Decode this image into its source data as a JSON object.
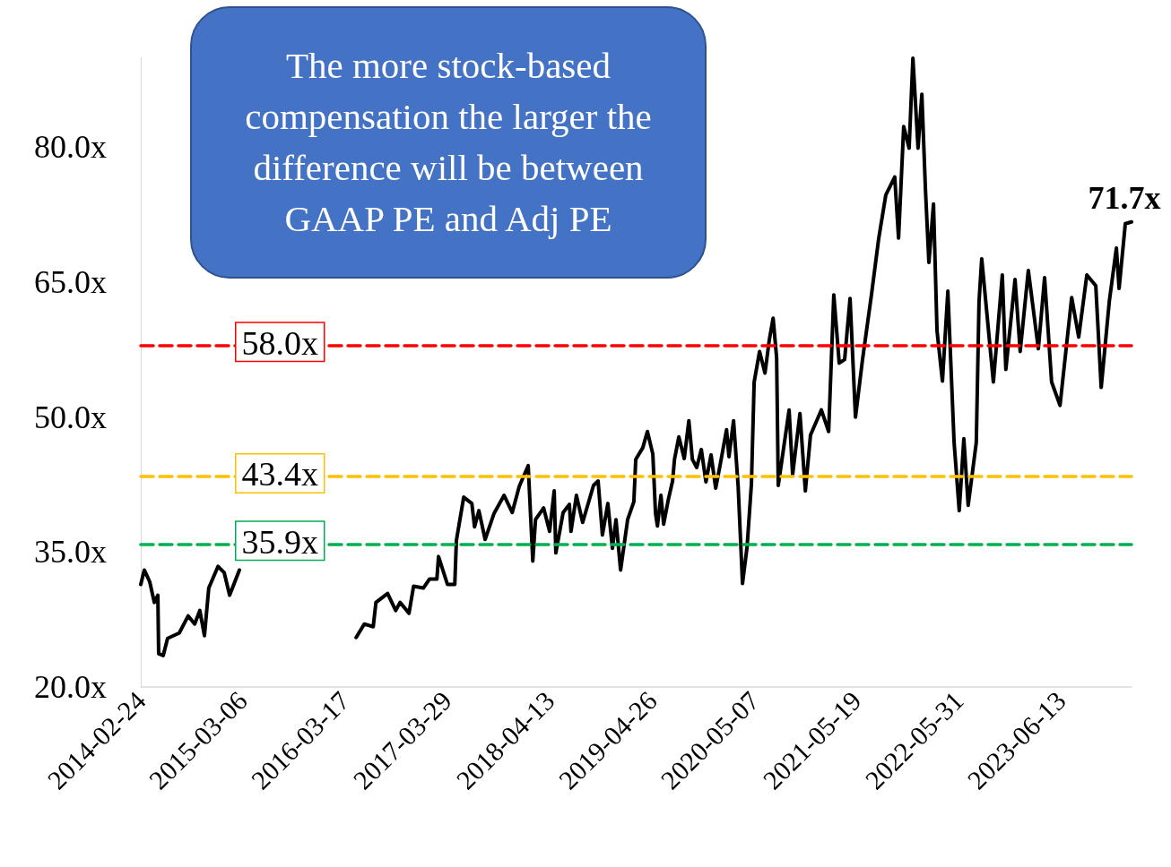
{
  "chart_data": {
    "type": "line",
    "annotations": [
      "The more stock-based compensation the larger the difference will be between GAAP PE and Adj PE"
    ],
    "x": [
      "2014-02-24",
      "2014-03-09",
      "2014-03-29",
      "2014-04-15",
      "2014-04-28",
      "2014-05-01",
      "2014-05-18",
      "2014-06-03",
      "2014-07-16",
      "2014-08-18",
      "2014-09-11",
      "2014-09-30",
      "2014-10-17",
      "2014-11-02",
      "2014-12-06",
      "2014-12-29",
      "2015-01-18",
      "2015-02-23",
      "2015-09-01",
      "2016-04-29",
      "2016-05-29",
      "2016-07-01",
      "2016-07-11",
      "2016-08-23",
      "2016-09-22",
      "2016-10-08",
      "2016-11-10",
      "2016-11-27",
      "2017-01-02",
      "2017-01-25",
      "2017-02-21",
      "2017-02-27",
      "2017-04-01",
      "2017-04-28",
      "2017-05-04",
      "2017-05-31",
      "2017-06-30",
      "2017-07-10",
      "2017-07-26",
      "2017-08-18",
      "2017-09-20",
      "2017-10-27",
      "2017-11-26",
      "2017-12-22",
      "2018-01-24",
      "2018-02-10",
      "2018-02-20",
      "2018-03-22",
      "2018-04-13",
      "2018-04-30",
      "2018-05-06",
      "2018-06-02",
      "2018-06-25",
      "2018-07-01",
      "2018-07-21",
      "2018-08-13",
      "2018-09-22",
      "2018-10-09",
      "2018-10-25",
      "2018-11-14",
      "2018-12-01",
      "2018-12-14",
      "2018-12-31",
      "2019-01-26",
      "2019-02-18",
      "2019-02-25",
      "2019-03-23",
      "2019-04-09",
      "2019-04-29",
      "2019-05-09",
      "2019-05-16",
      "2019-05-29",
      "2019-06-08",
      "2019-06-25",
      "2019-07-11",
      "2019-07-18",
      "2019-08-03",
      "2019-08-23",
      "2019-09-09",
      "2019-09-22",
      "2019-10-08",
      "2019-10-25",
      "2019-11-11",
      "2019-11-30",
      "2019-12-17",
      "2020-01-02",
      "2020-01-26",
      "2020-02-04",
      "2020-02-21",
      "2020-03-09",
      "2020-03-25",
      "2020-04-11",
      "2020-04-27",
      "2020-05-07",
      "2020-05-27",
      "2020-06-16",
      "2020-07-02",
      "2020-07-16",
      "2020-07-29",
      "2020-08-04",
      "2020-09-13",
      "2020-09-26",
      "2020-10-23",
      "2020-11-12",
      "2020-12-01",
      "2021-01-10",
      "2021-02-06",
      "2021-02-25",
      "2021-03-17",
      "2021-04-06",
      "2021-04-26",
      "2021-05-16",
      "2021-06-11",
      "2021-07-14",
      "2021-08-10",
      "2021-09-05",
      "2021-10-08",
      "2021-10-22",
      "2021-11-10",
      "2021-11-30",
      "2021-12-14",
      "2022-01-02",
      "2022-01-16",
      "2022-01-29",
      "2022-02-11",
      "2022-02-28",
      "2022-03-13",
      "2022-04-02",
      "2022-04-22",
      "2022-05-15",
      "2022-06-03",
      "2022-06-20",
      "2022-07-06",
      "2022-08-05",
      "2022-08-15",
      "2022-08-25",
      "2022-10-07",
      "2022-11-09",
      "2022-11-22",
      "2022-12-26",
      "2023-01-14",
      "2023-02-13",
      "2023-03-22",
      "2023-04-14",
      "2023-05-10",
      "2023-06-10",
      "2023-07-23",
      "2023-08-18",
      "2023-09-17",
      "2023-10-20",
      "2023-11-09",
      "2023-12-09",
      "2024-01-04",
      "2024-01-14",
      "2024-02-06",
      "2024-02-29"
    ],
    "series": [
      {
        "color": "#000000",
        "values": [
          31.4,
          33.0,
          31.7,
          29.4,
          30.2,
          23.7,
          23.5,
          25.4,
          26.0,
          27.9,
          27.0,
          28.5,
          25.7,
          31.0,
          33.4,
          32.7,
          30.2,
          33.0,
          null,
          25.5,
          27.0,
          26.7,
          29.4,
          30.4,
          28.5,
          29.4,
          28.2,
          31.2,
          31.0,
          32.0,
          32.0,
          34.5,
          31.4,
          31.4,
          36.3,
          41.1,
          40.4,
          37.8,
          39.6,
          36.4,
          39.3,
          41.3,
          39.4,
          42.3,
          44.6,
          34.0,
          38.6,
          39.9,
          37.3,
          41.8,
          34.9,
          39.4,
          40.3,
          37.3,
          41.3,
          38.3,
          42.4,
          42.9,
          36.9,
          40.4,
          35.4,
          38.6,
          33.0,
          38.6,
          40.6,
          45.3,
          46.6,
          48.4,
          45.9,
          39.3,
          37.9,
          41.3,
          38.1,
          40.8,
          42.9,
          45.3,
          47.8,
          45.4,
          49.6,
          45.3,
          44.4,
          46.4,
          42.8,
          45.8,
          42.1,
          44.6,
          48.6,
          45.6,
          49.6,
          42.3,
          31.5,
          35.6,
          42.6,
          53.9,
          57.3,
          54.9,
          58.6,
          61.0,
          56.6,
          42.4,
          50.8,
          43.6,
          50.4,
          41.8,
          48.0,
          50.8,
          48.4,
          63.6,
          56.0,
          56.4,
          63.2,
          50.0,
          56.4,
          63.6,
          69.9,
          74.7,
          76.7,
          69.9,
          82.3,
          79.9,
          89.9,
          79.9,
          85.9,
          75.5,
          67.2,
          73.7,
          59.6,
          54.0,
          64.0,
          47.2,
          39.6,
          47.6,
          40.2,
          47.2,
          62.8,
          67.6,
          53.9,
          65.8,
          55.3,
          65.3,
          57.3,
          66.3,
          57.6,
          65.5,
          53.9,
          51.3,
          63.3,
          58.9,
          65.8,
          64.6,
          53.3,
          62.9,
          68.8,
          64.3,
          71.5,
          71.7
        ],
        "value_labels": [
          null,
          null,
          null,
          null,
          null,
          null,
          null,
          null,
          null,
          null,
          null,
          null,
          null,
          null,
          null,
          null,
          null,
          null,
          null,
          null,
          null,
          null,
          null,
          null,
          null,
          null,
          null,
          null,
          null,
          null,
          null,
          null,
          null,
          null,
          null,
          null,
          null,
          null,
          null,
          null,
          null,
          null,
          null,
          null,
          null,
          null,
          null,
          null,
          null,
          null,
          null,
          null,
          null,
          null,
          null,
          null,
          null,
          null,
          null,
          null,
          null,
          null,
          null,
          null,
          null,
          null,
          null,
          null,
          null,
          null,
          null,
          null,
          null,
          null,
          null,
          null,
          null,
          null,
          null,
          null,
          null,
          null,
          null,
          null,
          null,
          null,
          null,
          null,
          null,
          null,
          null,
          null,
          null,
          null,
          null,
          null,
          null,
          null,
          null,
          null,
          null,
          null,
          null,
          null,
          null,
          null,
          null,
          null,
          null,
          null,
          null,
          null,
          null,
          null,
          null,
          null,
          null,
          null,
          null,
          null,
          null,
          null,
          null,
          null,
          null,
          null,
          null,
          null,
          null,
          null,
          null,
          null,
          null,
          null,
          null,
          null,
          null,
          null,
          null,
          null,
          null,
          null,
          null,
          null,
          null,
          null,
          null,
          null,
          null,
          null,
          null,
          null,
          null,
          null,
          null,
          "71.7x"
        ]
      }
    ],
    "xlim": [
      "2014-02-24",
      "2024-02-29"
    ],
    "xticks": [
      "2014-02-24",
      "2015-03-06",
      "2016-03-17",
      "2017-03-29",
      "2018-04-13",
      "2019-04-26",
      "2020-05-07",
      "2021-05-19",
      "2022-05-31",
      "2023-06-13"
    ],
    "ylim": [
      20,
      90
    ],
    "yticks": [
      {
        "value": 20,
        "label": "20.0x"
      },
      {
        "value": 35,
        "label": "35.0x"
      },
      {
        "value": 50,
        "label": "50.0x"
      },
      {
        "value": 65,
        "label": "65.0x"
      },
      {
        "value": 80,
        "label": "80.0x"
      }
    ],
    "ref_lines": [
      {
        "axis": "y",
        "value": 58.0,
        "label": "58.0x",
        "color": "#ff0000",
        "line_style": "dashed"
      },
      {
        "axis": "y",
        "value": 43.4,
        "label": "43.4x",
        "color": "#ffc000",
        "line_style": "dashed"
      },
      {
        "axis": "y",
        "value": 35.9,
        "label": "35.9x",
        "color": "#00b050",
        "line_style": "dashed"
      }
    ],
    "grid": false
  }
}
